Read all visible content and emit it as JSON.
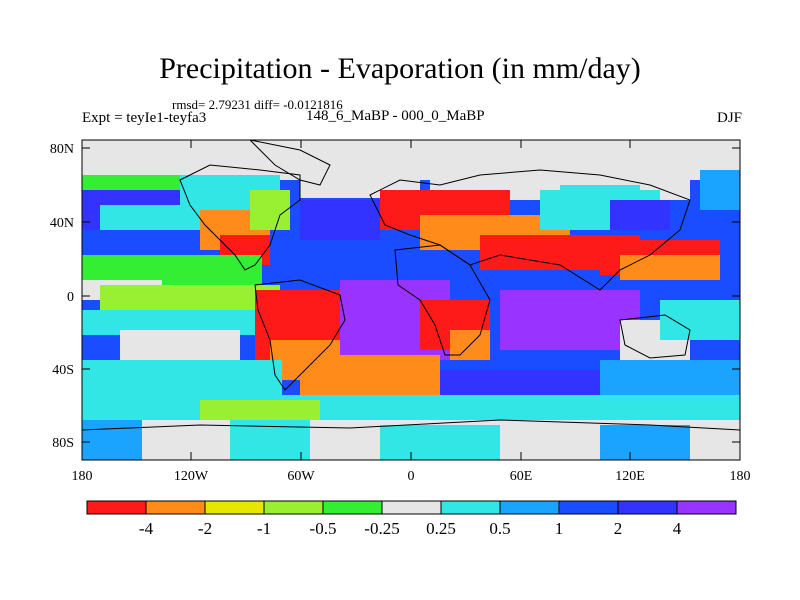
{
  "title": "Precipitation - Evaporation (in mm/day)",
  "stats": "rmsd= 2.79231 diff= -0.0121816",
  "experiment": "Expt = teyIe1-teyfa3",
  "period": "148_6_MaBP - 000_0_MaBP",
  "season": "DJF",
  "map": {
    "lat_ticks": [
      "80N",
      "40N",
      "0",
      "40S",
      "80S"
    ],
    "lon_ticks": [
      "180",
      "120W",
      "60W",
      "0",
      "60E",
      "120E",
      "180"
    ]
  },
  "colorbar": {
    "labels": [
      "-4",
      "-2",
      "-1",
      "-0.5",
      "-0.25",
      "0.25",
      "0.5",
      "1",
      "2",
      "4"
    ],
    "colors": [
      "#ff1a1a",
      "#ff8c1a",
      "#e6e600",
      "#99f033",
      "#33ee33",
      "#e6e6e6",
      "#33e6e6",
      "#1aa3ff",
      "#1a4dff",
      "#3333ff",
      "#9933ff"
    ]
  }
}
